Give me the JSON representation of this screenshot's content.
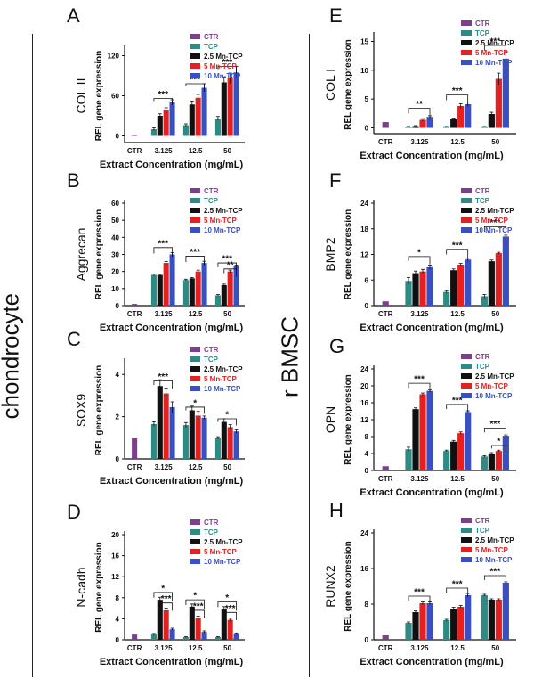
{
  "sections": {
    "left": "chondrocyte",
    "right": "r BMSC"
  },
  "legend_labels": [
    "CTR",
    "TCP",
    "2.5 Mn-TCP",
    "5 Mn-TCP",
    "10 Mn-TCP"
  ],
  "colors": {
    "CTR": "#7b3f8c",
    "TCP": "#2e8b84",
    "2.5 Mn-TCP": "#111111",
    "5 Mn-TCP": "#e52020",
    "10 Mn-TCP": "#3a4fc4"
  },
  "chart_data": [
    {
      "type": "bar",
      "panel": "A",
      "gene": "COL II",
      "ylabel": "REL gene expression",
      "xlabel": "Extract Concentration (mg/mL)",
      "ylim": [
        -10,
        130
      ],
      "yticks": [
        0,
        60,
        120
      ],
      "control": {
        "label": "CTR",
        "value": 1
      },
      "categories": [
        "3.125",
        "12.5",
        "50"
      ],
      "series": [
        {
          "name": "TCP",
          "values": [
            10,
            16,
            26
          ],
          "errors": [
            2,
            2,
            3
          ]
        },
        {
          "name": "2.5 Mn-TCP",
          "values": [
            30,
            47,
            80
          ],
          "errors": [
            3,
            5,
            8
          ]
        },
        {
          "name": "5 Mn-TCP",
          "values": [
            38,
            57,
            86
          ],
          "errors": [
            4,
            5,
            8
          ]
        },
        {
          "name": "10 Mn-TCP",
          "values": [
            50,
            72,
            95
          ],
          "errors": [
            4,
            6,
            9
          ]
        }
      ],
      "annotations": [
        "***",
        "***",
        "***"
      ]
    },
    {
      "type": "bar",
      "panel": "B",
      "gene": "Aggrecan",
      "ylabel": "REL gene expression",
      "xlabel": "Extract Concentration (mg/mL)",
      "ylim": [
        0,
        60
      ],
      "yticks": [
        0,
        10,
        20,
        30,
        40,
        50,
        60
      ],
      "control": {
        "label": "CTR",
        "value": 1
      },
      "categories": [
        "3.125",
        "12.5",
        "50"
      ],
      "series": [
        {
          "name": "TCP",
          "values": [
            18,
            15,
            6
          ],
          "errors": [
            0.5,
            0.5,
            0.5
          ]
        },
        {
          "name": "2.5 Mn-TCP",
          "values": [
            18,
            16,
            12
          ],
          "errors": [
            0.5,
            0.5,
            0.6
          ]
        },
        {
          "name": "5 Mn-TCP",
          "values": [
            25,
            20,
            20
          ],
          "errors": [
            0.8,
            0.8,
            0.8
          ]
        },
        {
          "name": "10 Mn-TCP",
          "values": [
            30,
            25,
            23
          ],
          "errors": [
            1,
            1,
            0.8
          ]
        }
      ],
      "annotations": [
        "***",
        "***",
        "***",
        "**"
      ]
    },
    {
      "type": "bar",
      "panel": "C",
      "gene": "SOX9",
      "ylabel": "REL gene expression",
      "xlabel": "Extract Concentration (mg/mL)",
      "ylim": [
        0,
        4.6
      ],
      "yticks": [
        0,
        2,
        4
      ],
      "control": {
        "label": "CTR",
        "value": 1
      },
      "categories": [
        "3.125",
        "12.5",
        "50"
      ],
      "series": [
        {
          "name": "TCP",
          "values": [
            1.65,
            1.6,
            1.0
          ],
          "errors": [
            0.1,
            0.12,
            0.05
          ]
        },
        {
          "name": "2.5 Mn-TCP",
          "values": [
            3.45,
            2.3,
            1.75
          ],
          "errors": [
            0.3,
            0.2,
            0.15
          ]
        },
        {
          "name": "5 Mn-TCP",
          "values": [
            3.1,
            2.05,
            1.5
          ],
          "errors": [
            0.25,
            0.2,
            0.12
          ]
        },
        {
          "name": "10 Mn-TCP",
          "values": [
            2.45,
            1.95,
            1.3
          ],
          "errors": [
            0.25,
            0.08,
            0.08
          ]
        }
      ],
      "annotations": [
        "***",
        "*",
        "*"
      ]
    },
    {
      "type": "bar",
      "panel": "D",
      "gene": "N-cadh",
      "ylabel": "REL gene expression",
      "xlabel": "Extract Concentration (mg/mL)",
      "ylim": [
        0,
        20
      ],
      "yticks": [
        0,
        4,
        8,
        12,
        16,
        20
      ],
      "control": {
        "label": "CTR",
        "value": 1
      },
      "categories": [
        "3.125",
        "12.5",
        "50"
      ],
      "series": [
        {
          "name": "TCP",
          "values": [
            1,
            0.5,
            0.5
          ],
          "errors": [
            0.2,
            0.1,
            0.1
          ]
        },
        {
          "name": "2.5 Mn-TCP",
          "values": [
            7.6,
            6.3,
            5.8
          ],
          "errors": [
            0.5,
            0.5,
            0.5
          ]
        },
        {
          "name": "5 Mn-TCP",
          "values": [
            5.6,
            4.2,
            3.8
          ],
          "errors": [
            0.4,
            0.3,
            0.3
          ]
        },
        {
          "name": "10 Mn-TCP",
          "values": [
            2.0,
            1.5,
            1.2
          ],
          "errors": [
            0.2,
            0.2,
            0.1
          ]
        }
      ],
      "annotations": [
        "*",
        "***",
        "*",
        "***",
        "*",
        "***"
      ]
    },
    {
      "type": "bar",
      "panel": "E",
      "gene": "COL I",
      "ylabel": "REL gene expression",
      "xlabel": "Extract Concentration (mg/mL)",
      "ylim": [
        -1,
        16
      ],
      "yticks": [
        0,
        5,
        10,
        15
      ],
      "control": {
        "label": "CTR",
        "value": 1
      },
      "categories": [
        "3.125",
        "12.5",
        "50"
      ],
      "series": [
        {
          "name": "TCP",
          "values": [
            0.2,
            0.2,
            0.2
          ],
          "errors": [
            0.05,
            0.05,
            0.05
          ]
        },
        {
          "name": "2.5 Mn-TCP",
          "values": [
            0.3,
            1.5,
            2.4
          ],
          "errors": [
            0.1,
            0.2,
            0.3
          ]
        },
        {
          "name": "5 Mn-TCP",
          "values": [
            1.4,
            3.8,
            8.5
          ],
          "errors": [
            0.2,
            0.4,
            1.0
          ]
        },
        {
          "name": "10 Mn-TCP",
          "values": [
            1.9,
            4.1,
            12
          ],
          "errors": [
            0.2,
            0.4,
            1.2
          ]
        }
      ],
      "annotations": [
        "**",
        "***",
        "***"
      ]
    },
    {
      "type": "bar",
      "panel": "F",
      "gene": "BMP2",
      "ylabel": "REL gene expression",
      "xlabel": "Extract Concentration (mg/mL)",
      "ylim": [
        0,
        24
      ],
      "yticks": [
        0,
        6,
        12,
        18,
        24
      ],
      "control": {
        "label": "CTR",
        "value": 1
      },
      "categories": [
        "3.125",
        "12.5",
        "50"
      ],
      "series": [
        {
          "name": "TCP",
          "values": [
            5.8,
            3.2,
            2.2
          ],
          "errors": [
            0.8,
            0.3,
            0.4
          ]
        },
        {
          "name": "2.5 Mn-TCP",
          "values": [
            7.6,
            8.3,
            10.4
          ],
          "errors": [
            0.5,
            0.3,
            0.3
          ]
        },
        {
          "name": "5 Mn-TCP",
          "values": [
            8.0,
            9.6,
            12.3
          ],
          "errors": [
            0.5,
            0.3,
            0.2
          ]
        },
        {
          "name": "10 Mn-TCP",
          "values": [
            9.0,
            10.8,
            16.2
          ],
          "errors": [
            0.5,
            0.3,
            0.3
          ]
        }
      ],
      "annotations": [
        "*",
        "***",
        "***"
      ]
    },
    {
      "type": "bar",
      "panel": "G",
      "gene": "OPN",
      "ylabel": "REL gene expression",
      "xlabel": "Extract Concentration (mg/mL)",
      "ylim": [
        0,
        24
      ],
      "yticks": [
        0,
        4,
        8,
        12,
        16,
        20,
        24
      ],
      "control": {
        "label": "CTR",
        "value": 1
      },
      "categories": [
        "3.125",
        "12.5",
        "50"
      ],
      "series": [
        {
          "name": "TCP",
          "values": [
            5.0,
            4.6,
            3.3
          ],
          "errors": [
            0.5,
            0.2,
            0.2
          ]
        },
        {
          "name": "2.5 Mn-TCP",
          "values": [
            14.5,
            6.8,
            4.0
          ],
          "errors": [
            0.3,
            0.3,
            0.2
          ]
        },
        {
          "name": "5 Mn-TCP",
          "values": [
            18.0,
            8.8,
            4.6
          ],
          "errors": [
            0.3,
            0.3,
            0.2
          ]
        },
        {
          "name": "10 Mn-TCP",
          "values": [
            18.8,
            13.8,
            8.2
          ],
          "errors": [
            0.3,
            0.3,
            0.2
          ]
        }
      ],
      "annotations": [
        "***",
        "***",
        "***",
        "*"
      ]
    },
    {
      "type": "bar",
      "panel": "H",
      "gene": "RUNX2",
      "ylabel": "REL gene expression",
      "xlabel": "Extract Concentration (mg/mL)",
      "ylim": [
        0,
        24
      ],
      "yticks": [
        0,
        8,
        16,
        24
      ],
      "control": {
        "label": "CTR",
        "value": 1
      },
      "categories": [
        "3.125",
        "12.5",
        "50"
      ],
      "series": [
        {
          "name": "TCP",
          "values": [
            3.8,
            4.4,
            10.0
          ],
          "errors": [
            0.2,
            0.2,
            0.2
          ]
        },
        {
          "name": "2.5 Mn-TCP",
          "values": [
            6.2,
            7.0,
            9.0
          ],
          "errors": [
            0.3,
            0.3,
            0.2
          ]
        },
        {
          "name": "5 Mn-TCP",
          "values": [
            8.2,
            7.4,
            9.0
          ],
          "errors": [
            0.3,
            0.3,
            0.2
          ]
        },
        {
          "name": "10 Mn-TCP",
          "values": [
            8.2,
            10.0,
            12.8
          ],
          "errors": [
            0.3,
            0.4,
            0.2
          ]
        }
      ],
      "annotations": [
        "***",
        "***",
        "***"
      ]
    }
  ]
}
